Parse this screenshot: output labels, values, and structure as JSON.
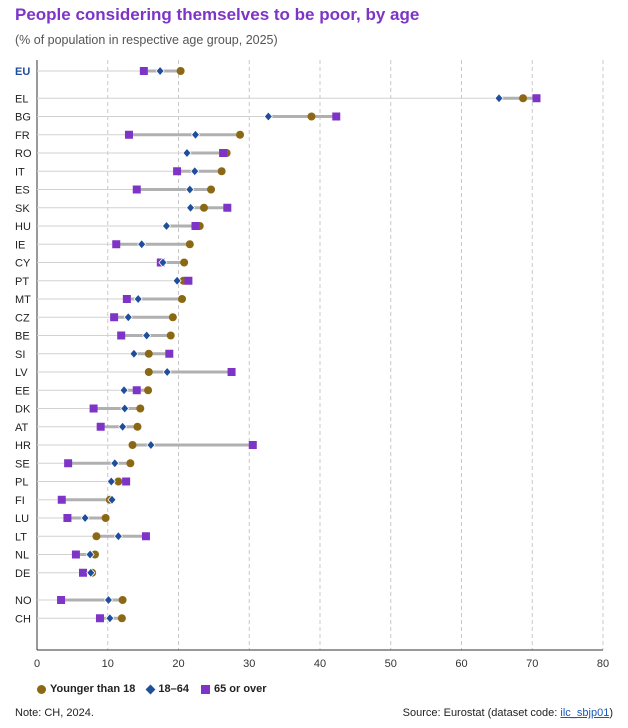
{
  "title": "People considering themselves to be poor, by age",
  "subtitle": "(% of population in respective age group, 2025)",
  "note": "Note: CH, 2024.",
  "source_prefix": "Source: Eurostat (dataset code: ",
  "source_code": "ilc_sbjp01",
  "source_suffix": ")",
  "colors": {
    "younger": "#8b6914",
    "middle": "#1f4e9c",
    "older": "#7e35c7",
    "eu_label": "#1f4e9c",
    "connector": "#b0b0b0",
    "grid": "#c8c8c8"
  },
  "chart_data": {
    "type": "dot",
    "xlim": [
      0,
      80
    ],
    "xticks": [
      0,
      10,
      20,
      30,
      40,
      50,
      60,
      70,
      80
    ],
    "grid": true,
    "legend_position": "bottom-left",
    "series": [
      {
        "name": "Younger than 18",
        "marker": "circle"
      },
      {
        "name": "18–64",
        "marker": "diamond"
      },
      {
        "name": "65 or over",
        "marker": "square"
      }
    ],
    "rows": [
      {
        "label": "EU",
        "values": [
          20.3,
          17.4,
          15.1
        ],
        "group": 0
      },
      {
        "label": "EL",
        "values": [
          68.7,
          65.3,
          70.6
        ],
        "group": 1
      },
      {
        "label": "BG",
        "values": [
          38.8,
          32.7,
          42.3
        ],
        "group": 1
      },
      {
        "label": "FR",
        "values": [
          28.7,
          22.4,
          13.0
        ],
        "group": 1
      },
      {
        "label": "RO",
        "values": [
          26.8,
          21.2,
          26.3
        ],
        "group": 1
      },
      {
        "label": "IT",
        "values": [
          26.1,
          22.3,
          19.8
        ],
        "group": 1
      },
      {
        "label": "ES",
        "values": [
          24.6,
          21.6,
          14.1
        ],
        "group": 1
      },
      {
        "label": "SK",
        "values": [
          23.6,
          21.7,
          26.9
        ],
        "group": 1
      },
      {
        "label": "HU",
        "values": [
          23.0,
          18.3,
          22.4
        ],
        "group": 1
      },
      {
        "label": "IE",
        "values": [
          21.6,
          14.8,
          11.2
        ],
        "group": 1
      },
      {
        "label": "CY",
        "values": [
          20.8,
          17.8,
          17.5
        ],
        "group": 1
      },
      {
        "label": "PT",
        "values": [
          20.7,
          19.8,
          21.4
        ],
        "group": 1
      },
      {
        "label": "MT",
        "values": [
          20.5,
          14.3,
          12.7
        ],
        "group": 1
      },
      {
        "label": "CZ",
        "values": [
          19.2,
          12.9,
          10.9
        ],
        "group": 1
      },
      {
        "label": "BE",
        "values": [
          18.9,
          15.5,
          11.9
        ],
        "group": 1
      },
      {
        "label": "SI",
        "values": [
          15.8,
          13.7,
          18.7
        ],
        "group": 1
      },
      {
        "label": "LV",
        "values": [
          15.8,
          18.4,
          27.5
        ],
        "group": 1
      },
      {
        "label": "EE",
        "values": [
          15.7,
          12.3,
          14.1
        ],
        "group": 1
      },
      {
        "label": "DK",
        "values": [
          14.6,
          12.4,
          8.0
        ],
        "group": 1
      },
      {
        "label": "AT",
        "values": [
          14.2,
          12.1,
          9.0
        ],
        "group": 1
      },
      {
        "label": "HR",
        "values": [
          13.5,
          16.1,
          30.5
        ],
        "group": 1
      },
      {
        "label": "SE",
        "values": [
          13.2,
          11.0,
          4.4
        ],
        "group": 1
      },
      {
        "label": "PL",
        "values": [
          11.5,
          10.5,
          12.6
        ],
        "group": 1
      },
      {
        "label": "FI",
        "values": [
          10.3,
          10.6,
          3.5
        ],
        "group": 1
      },
      {
        "label": "LU",
        "values": [
          9.7,
          6.8,
          4.3
        ],
        "group": 1
      },
      {
        "label": "LT",
        "values": [
          8.4,
          11.5,
          15.4
        ],
        "group": 1
      },
      {
        "label": "NL",
        "values": [
          8.2,
          7.5,
          5.5
        ],
        "group": 1
      },
      {
        "label": "DE",
        "values": [
          7.8,
          7.6,
          6.5
        ],
        "group": 1
      },
      {
        "label": "NO",
        "values": [
          12.1,
          10.1,
          3.4
        ],
        "group": 2
      },
      {
        "label": "CH",
        "values": [
          12.0,
          10.3,
          8.9
        ],
        "group": 2
      }
    ]
  }
}
